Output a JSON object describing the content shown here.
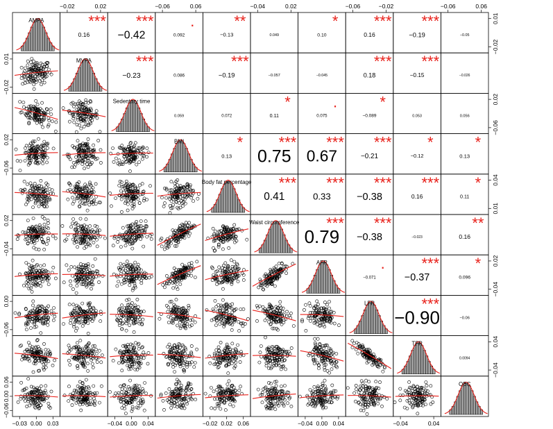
{
  "chart_data": {
    "type": "scatter-matrix",
    "variables": [
      "AMPA",
      "MVPA",
      "Sedentary time",
      "BMI",
      "Body fat percentage",
      "Waist circumference",
      "AFR",
      "LFR",
      "TFR",
      "OBC"
    ],
    "correlations": [
      {
        "row": 0,
        "col": 1,
        "r": "0.16",
        "stars": "***"
      },
      {
        "row": 0,
        "col": 2,
        "r": "−0.42",
        "stars": "***"
      },
      {
        "row": 0,
        "col": 3,
        "r": "0.092",
        "stars": "."
      },
      {
        "row": 0,
        "col": 4,
        "r": "−0.13",
        "stars": "**"
      },
      {
        "row": 0,
        "col": 5,
        "r": "0.049",
        "stars": ""
      },
      {
        "row": 0,
        "col": 6,
        "r": "0.10",
        "stars": "*"
      },
      {
        "row": 0,
        "col": 7,
        "r": "0.16",
        "stars": "***"
      },
      {
        "row": 0,
        "col": 8,
        "r": "−0.19",
        "stars": "***"
      },
      {
        "row": 0,
        "col": 9,
        "r": "−0.05",
        "stars": ""
      },
      {
        "row": 1,
        "col": 2,
        "r": "−0.23",
        "stars": "***"
      },
      {
        "row": 1,
        "col": 3,
        "r": "0.086",
        "stars": ""
      },
      {
        "row": 1,
        "col": 4,
        "r": "−0.19",
        "stars": "***"
      },
      {
        "row": 1,
        "col": 5,
        "r": "−0.057",
        "stars": ""
      },
      {
        "row": 1,
        "col": 6,
        "r": "−0.045",
        "stars": ""
      },
      {
        "row": 1,
        "col": 7,
        "r": "0.18",
        "stars": "***"
      },
      {
        "row": 1,
        "col": 8,
        "r": "−0.15",
        "stars": "***"
      },
      {
        "row": 1,
        "col": 9,
        "r": "−0.026",
        "stars": ""
      },
      {
        "row": 2,
        "col": 3,
        "r": "0.059",
        "stars": ""
      },
      {
        "row": 2,
        "col": 4,
        "r": "0.072",
        "stars": ""
      },
      {
        "row": 2,
        "col": 5,
        "r": "0.11",
        "stars": "*"
      },
      {
        "row": 2,
        "col": 6,
        "r": "0.075",
        "stars": "."
      },
      {
        "row": 2,
        "col": 7,
        "r": "−0.089",
        "stars": "*"
      },
      {
        "row": 2,
        "col": 8,
        "r": "0.053",
        "stars": ""
      },
      {
        "row": 2,
        "col": 9,
        "r": "0.056",
        "stars": ""
      },
      {
        "row": 3,
        "col": 4,
        "r": "0.13",
        "stars": "*"
      },
      {
        "row": 3,
        "col": 5,
        "r": "0.75",
        "stars": "***"
      },
      {
        "row": 3,
        "col": 6,
        "r": "0.67",
        "stars": "***"
      },
      {
        "row": 3,
        "col": 7,
        "r": "−0.21",
        "stars": "***"
      },
      {
        "row": 3,
        "col": 8,
        "r": "−0.12",
        "stars": "*"
      },
      {
        "row": 3,
        "col": 9,
        "r": "0.13",
        "stars": "*"
      },
      {
        "row": 4,
        "col": 5,
        "r": "0.41",
        "stars": "***"
      },
      {
        "row": 4,
        "col": 6,
        "r": "0.33",
        "stars": "***"
      },
      {
        "row": 4,
        "col": 7,
        "r": "−0.38",
        "stars": "***"
      },
      {
        "row": 4,
        "col": 8,
        "r": "0.16",
        "stars": "***"
      },
      {
        "row": 4,
        "col": 9,
        "r": "0.11",
        "stars": "*"
      },
      {
        "row": 5,
        "col": 6,
        "r": "0.79",
        "stars": "***"
      },
      {
        "row": 5,
        "col": 7,
        "r": "−0.38",
        "stars": "***"
      },
      {
        "row": 5,
        "col": 8,
        "r": "−0.023",
        "stars": ""
      },
      {
        "row": 5,
        "col": 9,
        "r": "0.16",
        "stars": "**"
      },
      {
        "row": 6,
        "col": 7,
        "r": "−0.071",
        "stars": "."
      },
      {
        "row": 6,
        "col": 8,
        "r": "−0.37",
        "stars": "***"
      },
      {
        "row": 6,
        "col": 9,
        "r": "0.096",
        "stars": "*"
      },
      {
        "row": 7,
        "col": 8,
        "r": "−0.90",
        "stars": "***"
      },
      {
        "row": 7,
        "col": 9,
        "r": "−0.06",
        "stars": ""
      },
      {
        "row": 8,
        "col": 9,
        "r": "0.0094",
        "stars": ""
      }
    ],
    "top_axis": [
      {
        "col": 1,
        "ticks": [
          "−0.02",
          "0.02"
        ]
      },
      {
        "col": 3,
        "ticks": [
          "−0.06",
          "0.06"
        ]
      },
      {
        "col": 5,
        "ticks": [
          "−0.04",
          "0.02"
        ]
      },
      {
        "col": 7,
        "ticks": [
          "−0.06",
          "−0.02"
        ]
      },
      {
        "col": 9,
        "ticks": [
          "−0.06",
          "0.06"
        ]
      }
    ],
    "bottom_axis": [
      {
        "col": 0,
        "ticks": [
          "−0.03",
          "0.00",
          "0.03"
        ]
      },
      {
        "col": 2,
        "ticks": [
          "−0.04",
          "0.00",
          "0.04"
        ]
      },
      {
        "col": 4,
        "ticks": [
          "−0.02",
          "0.02",
          "0.06"
        ]
      },
      {
        "col": 6,
        "ticks": [
          "−0.04",
          "0.00",
          "0.04"
        ]
      },
      {
        "col": 8,
        "ticks": [
          "−0.04",
          "0.04"
        ]
      }
    ],
    "left_axis": [
      {
        "row": 1,
        "ticks": [
          "0.01",
          "−0.02"
        ]
      },
      {
        "row": 3,
        "ticks": [
          "0.02",
          "−0.06"
        ]
      },
      {
        "row": 5,
        "ticks": [
          "0.02",
          "−0.04"
        ]
      },
      {
        "row": 7,
        "ticks": [
          "0.00",
          "−0.06"
        ]
      },
      {
        "row": 9,
        "ticks": [
          "0.06",
          "0.00",
          "−0.06"
        ]
      }
    ],
    "right_axis": [
      {
        "row": 0,
        "ticks": [
          "0.01",
          "−0.02"
        ]
      },
      {
        "row": 2,
        "ticks": [
          "0.02",
          "−0.06"
        ]
      },
      {
        "row": 4,
        "ticks": [
          "0.04",
          "0.01"
        ]
      },
      {
        "row": 6,
        "ticks": [
          "0.02",
          "−0.04"
        ]
      },
      {
        "row": 8,
        "ticks": [
          "0.04",
          "−0.04"
        ]
      }
    ],
    "colors": {
      "fit_line": "#e8201a",
      "stars": "#e8201a",
      "points": "#000000",
      "hist_fill": "#a0a0a0",
      "density": "#e8201a"
    }
  }
}
